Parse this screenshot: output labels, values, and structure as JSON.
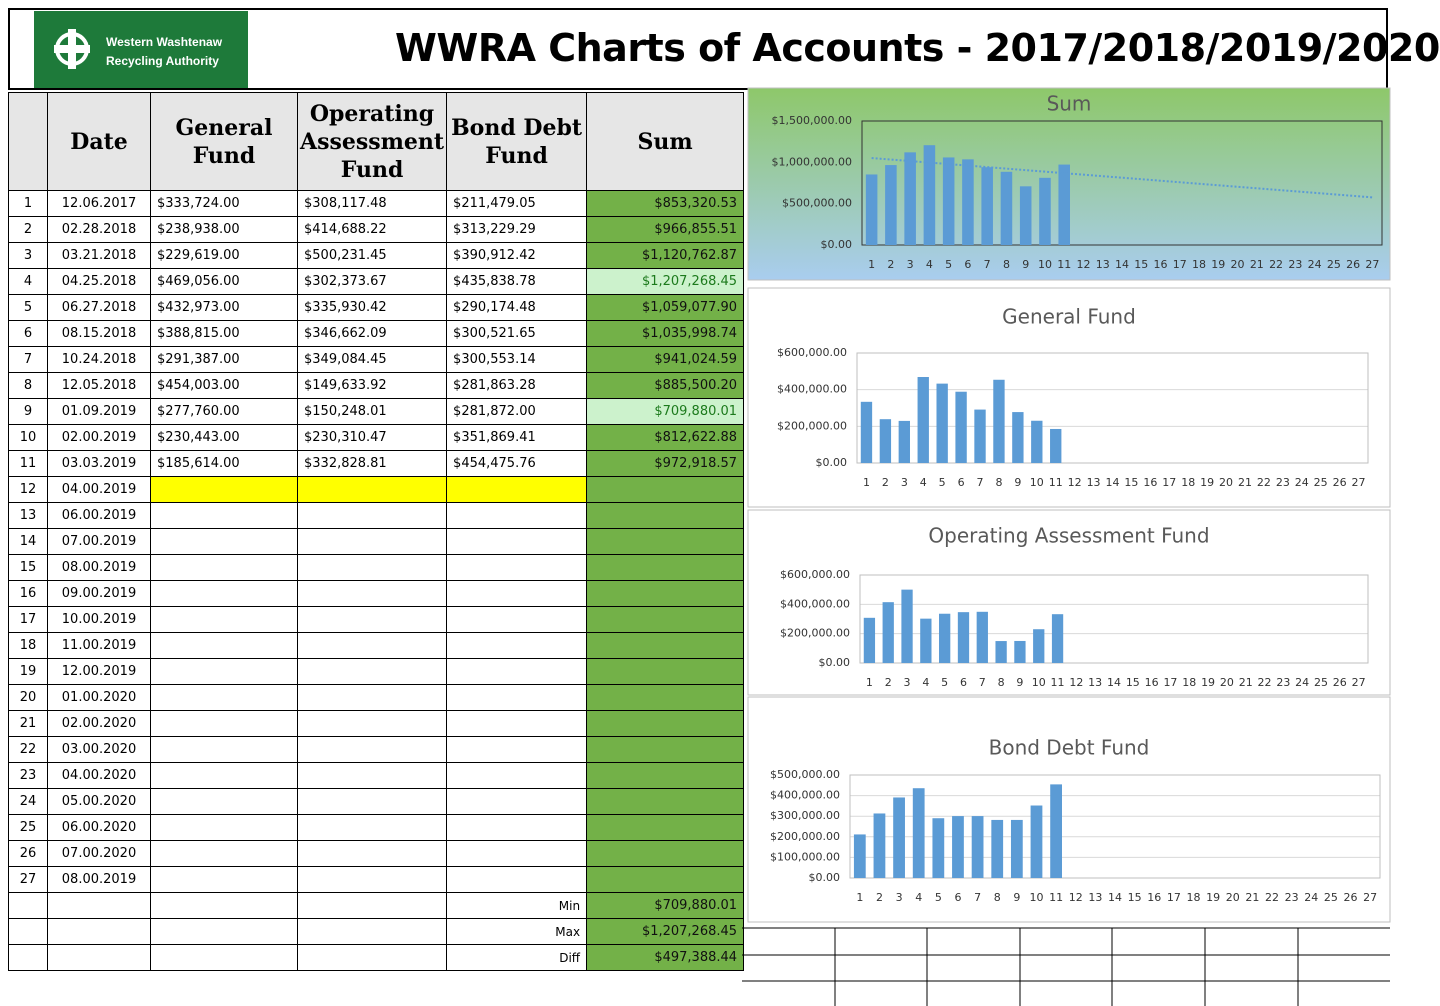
{
  "header": {
    "logo_lines": [
      "Western Washtenaw",
      "Recycling Authority"
    ],
    "title": "WWRA Charts of Accounts - 2017/2018/2019/2020"
  },
  "table": {
    "columns": [
      "Date",
      "General Fund",
      "Operating Assessment Fund",
      "Bond Debt Fund",
      "Sum"
    ],
    "rows": [
      [
        "1",
        "12.06.2017",
        "$333,724.00",
        "$308,117.48",
        "$211,479.05",
        "$853,320.53"
      ],
      [
        "2",
        "02.28.2018",
        "$238,938.00",
        "$414,688.22",
        "$313,229.29",
        "$966,855.51"
      ],
      [
        "3",
        "03.21.2018",
        "$229,619.00",
        "$500,231.45",
        "$390,912.42",
        "$1,120,762.87"
      ],
      [
        "4",
        "04.25.2018",
        "$469,056.00",
        "$302,373.67",
        "$435,838.78",
        "$1,207,268.45"
      ],
      [
        "5",
        "06.27.2018",
        "$432,973.00",
        "$335,930.42",
        "$290,174.48",
        "$1,059,077.90"
      ],
      [
        "6",
        "08.15.2018",
        "$388,815.00",
        "$346,662.09",
        "$300,521.65",
        "$1,035,998.74"
      ],
      [
        "7",
        "10.24.2018",
        "$291,387.00",
        "$349,084.45",
        "$300,553.14",
        "$941,024.59"
      ],
      [
        "8",
        "12.05.2018",
        "$454,003.00",
        "$149,633.92",
        "$281,863.28",
        "$885,500.20"
      ],
      [
        "9",
        "01.09.2019",
        "$277,760.00",
        "$150,248.01",
        "$281,872.00",
        "$709,880.01"
      ],
      [
        "10",
        "02.00.2019",
        "$230,443.00",
        "$230,310.47",
        "$351,869.41",
        "$812,622.88"
      ],
      [
        "11",
        "03.03.2019",
        "$185,614.00",
        "$332,828.81",
        "$454,475.76",
        "$972,918.57"
      ],
      [
        "12",
        "04.00.2019"
      ],
      [
        "13",
        "06.00.2019"
      ],
      [
        "14",
        "07.00.2019"
      ],
      [
        "15",
        "08.00.2019"
      ],
      [
        "16",
        "09.00.2019"
      ],
      [
        "17",
        "10.00.2019"
      ],
      [
        "18",
        "11.00.2019"
      ],
      [
        "19",
        "12.00.2019"
      ],
      [
        "20",
        "01.00.2020"
      ],
      [
        "21",
        "02.00.2020"
      ],
      [
        "22",
        "03.00.2020"
      ],
      [
        "23",
        "04.00.2020"
      ],
      [
        "24",
        "05.00.2020"
      ],
      [
        "25",
        "06.00.2020"
      ],
      [
        "26",
        "07.00.2020"
      ],
      [
        "27",
        "08.00.2019"
      ]
    ]
  },
  "summary": {
    "rows": [
      {
        "label": "Min",
        "value": "$709,880.01"
      },
      {
        "label": "Max",
        "value": "$1,207,268.45"
      },
      {
        "label": "Diff",
        "value": "$497,388.44"
      }
    ]
  },
  "chart_data": [
    {
      "type": "bar",
      "title": "Sum",
      "color": "#5b9bd5",
      "grid": false,
      "trendline": "linear",
      "categories": [
        "1",
        "2",
        "3",
        "4",
        "5",
        "6",
        "7",
        "8",
        "9",
        "10",
        "11",
        "12",
        "13",
        "14",
        "15",
        "16",
        "17",
        "18",
        "19",
        "20",
        "21",
        "22",
        "23",
        "24",
        "25",
        "26",
        "27"
      ],
      "values": [
        853320.53,
        966855.51,
        1120762.87,
        1207268.45,
        1059077.9,
        1035998.74,
        941024.59,
        885500.2,
        709880.01,
        812622.88,
        972918.57,
        null,
        null,
        null,
        null,
        null,
        null,
        null,
        null,
        null,
        null,
        null,
        null,
        null,
        null,
        null,
        null
      ],
      "ylim": [
        0,
        1500000
      ],
      "yticks": [
        {
          "value": 0,
          "label": "$0.00"
        },
        {
          "value": 500000,
          "label": "$500,000.00"
        },
        {
          "value": 1000000,
          "label": "$1,000,000.00"
        },
        {
          "value": 1500000,
          "label": "$1,500,000.00"
        }
      ]
    },
    {
      "type": "bar",
      "title": "General Fund",
      "color": "#5b9bd5",
      "grid": true,
      "categories": [
        "1",
        "2",
        "3",
        "4",
        "5",
        "6",
        "7",
        "8",
        "9",
        "10",
        "11",
        "12",
        "13",
        "14",
        "15",
        "16",
        "17",
        "18",
        "19",
        "20",
        "21",
        "22",
        "23",
        "24",
        "25",
        "26",
        "27"
      ],
      "values": [
        333724,
        238938,
        229619,
        469056,
        432973,
        388815,
        291387,
        454003,
        277760,
        230443,
        185614,
        null,
        null,
        null,
        null,
        null,
        null,
        null,
        null,
        null,
        null,
        null,
        null,
        null,
        null,
        null,
        null
      ],
      "ylim": [
        0,
        600000
      ],
      "yticks": [
        {
          "value": 0,
          "label": "$0.00"
        },
        {
          "value": 200000,
          "label": "$200,000.00"
        },
        {
          "value": 400000,
          "label": "$400,000.00"
        },
        {
          "value": 600000,
          "label": "$600,000.00"
        }
      ]
    },
    {
      "type": "bar",
      "title": "Operating Assessment Fund",
      "color": "#5b9bd5",
      "grid": true,
      "categories": [
        "1",
        "2",
        "3",
        "4",
        "5",
        "6",
        "7",
        "8",
        "9",
        "10",
        "11",
        "12",
        "13",
        "14",
        "15",
        "16",
        "17",
        "18",
        "19",
        "20",
        "21",
        "22",
        "23",
        "24",
        "25",
        "26",
        "27"
      ],
      "values": [
        308117.48,
        414688.22,
        500231.45,
        302373.67,
        335930.42,
        346662.09,
        349084.45,
        149633.92,
        150248.01,
        230310.47,
        332828.81,
        null,
        null,
        null,
        null,
        null,
        null,
        null,
        null,
        null,
        null,
        null,
        null,
        null,
        null,
        null,
        null
      ],
      "ylim": [
        0,
        600000
      ],
      "yticks": [
        {
          "value": 0,
          "label": "$0.00"
        },
        {
          "value": 200000,
          "label": "$200,000.00"
        },
        {
          "value": 400000,
          "label": "$400,000.00"
        },
        {
          "value": 600000,
          "label": "$600,000.00"
        }
      ]
    },
    {
      "type": "bar",
      "title": "Bond Debt Fund",
      "color": "#5b9bd5",
      "grid": true,
      "categories": [
        "1",
        "2",
        "3",
        "4",
        "5",
        "6",
        "7",
        "8",
        "9",
        "10",
        "11",
        "12",
        "13",
        "14",
        "15",
        "16",
        "17",
        "18",
        "19",
        "20",
        "21",
        "22",
        "23",
        "24",
        "25",
        "26",
        "27"
      ],
      "values": [
        211479.05,
        313229.29,
        390912.42,
        435838.78,
        290174.48,
        300521.65,
        300553.14,
        281863.28,
        281872.0,
        351869.41,
        454475.76,
        null,
        null,
        null,
        null,
        null,
        null,
        null,
        null,
        null,
        null,
        null,
        null,
        null,
        null,
        null,
        null
      ],
      "ylim": [
        0,
        500000
      ],
      "yticks": [
        {
          "value": 0,
          "label": "$0.00"
        },
        {
          "value": 100000,
          "label": "$100,000.00"
        },
        {
          "value": 200000,
          "label": "$200,000.00"
        },
        {
          "value": 300000,
          "label": "$300,000.00"
        },
        {
          "value": 400000,
          "label": "$400,000.00"
        },
        {
          "value": 500000,
          "label": "$500,000.00"
        }
      ]
    }
  ]
}
